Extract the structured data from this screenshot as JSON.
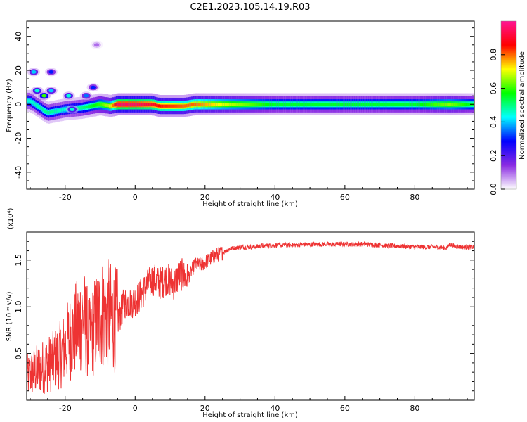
{
  "title": "C2E1.2023.105.14.19.R03",
  "chart_data": [
    {
      "type": "heatmap",
      "xlabel": "Height of straight line (km)",
      "ylabel": "Frequency (Hz)",
      "xlim": [
        -31,
        97
      ],
      "ylim": [
        -50,
        49
      ],
      "xticks": [
        -20,
        0,
        20,
        40,
        60,
        80
      ],
      "yticks": [
        -40,
        -20,
        0,
        20,
        40
      ],
      "colorbar": {
        "label": "Normalized spectral amplitude",
        "range": [
          0,
          1
        ],
        "ticks": [
          0.0,
          0.2,
          0.4,
          0.6,
          0.8
        ],
        "colors": [
          "#ffffff",
          "#8a2be2",
          "#0000ff",
          "#00ffff",
          "#00ff00",
          "#ffff00",
          "#ff0000",
          "#ff1493"
        ]
      },
      "band": [
        {
          "x": -30,
          "center": 2,
          "amp": 0.45
        },
        {
          "x": -25,
          "center": -5,
          "amp": 0.5
        },
        {
          "x": -20,
          "center": -3,
          "amp": 0.45
        },
        {
          "x": -15,
          "center": -2,
          "amp": 0.5
        },
        {
          "x": -10,
          "center": 0,
          "amp": 0.6
        },
        {
          "x": -7,
          "center": -1,
          "amp": 0.7
        },
        {
          "x": -5,
          "center": 0,
          "amp": 0.95
        },
        {
          "x": 0,
          "center": 0,
          "amp": 0.95
        },
        {
          "x": 5,
          "center": 0,
          "amp": 0.9
        },
        {
          "x": 7,
          "center": -1,
          "amp": 0.85
        },
        {
          "x": 14,
          "center": -1,
          "amp": 0.8
        },
        {
          "x": 17,
          "center": 0,
          "amp": 0.8
        },
        {
          "x": 25,
          "center": 0,
          "amp": 0.7
        },
        {
          "x": 40,
          "center": 0,
          "amp": 0.55
        },
        {
          "x": 60,
          "center": 0,
          "amp": 0.55
        },
        {
          "x": 80,
          "center": 0,
          "amp": 0.55
        },
        {
          "x": 90,
          "center": 0,
          "amp": 0.65
        },
        {
          "x": 96,
          "center": 0,
          "amp": 0.55
        }
      ],
      "blobs": [
        {
          "x": -29,
          "y": 19,
          "amp": 0.4
        },
        {
          "x": -28,
          "y": 8,
          "amp": 0.45
        },
        {
          "x": -26,
          "y": 5,
          "amp": 0.6
        },
        {
          "x": -24,
          "y": 8,
          "amp": 0.4
        },
        {
          "x": -24,
          "y": 19,
          "amp": 0.3
        },
        {
          "x": -19,
          "y": 5,
          "amp": 0.45
        },
        {
          "x": -18,
          "y": -3,
          "amp": 0.45
        },
        {
          "x": -14,
          "y": 5,
          "amp": 0.35
        },
        {
          "x": -12,
          "y": 10,
          "amp": 0.3
        },
        {
          "x": -11,
          "y": 35,
          "amp": 0.1
        }
      ]
    },
    {
      "type": "line",
      "xlabel": "Height of straight line (km)",
      "ylabel": "SNR (10 * v/v)",
      "y_multiplier": "(x10⁴)",
      "xlim": [
        -31,
        97
      ],
      "ylim": [
        0,
        1.8
      ],
      "xticks": [
        -20,
        0,
        20,
        40,
        60,
        80
      ],
      "yticks": [
        0.5,
        1.0,
        1.5
      ],
      "color": "#ee3333",
      "series": [
        {
          "x": [
            -31,
            -27,
            -24,
            -21,
            -19,
            -17,
            -15,
            -13,
            -11,
            -9,
            -7,
            -5,
            -3,
            -1,
            1,
            3,
            5,
            7,
            9,
            11,
            13,
            15,
            17,
            19,
            21,
            23,
            25,
            27,
            30,
            33,
            36,
            40,
            45,
            50,
            55,
            60,
            65,
            70,
            75,
            80,
            85,
            89,
            90,
            91,
            93,
            95,
            97
          ],
          "y": [
            0.25,
            0.35,
            0.4,
            0.5,
            0.65,
            0.75,
            0.9,
            0.65,
            0.85,
            0.95,
            0.9,
            0.85,
            1.05,
            1.05,
            1.1,
            1.2,
            1.3,
            1.25,
            1.3,
            1.25,
            1.35,
            1.3,
            1.45,
            1.45,
            1.5,
            1.55,
            1.58,
            1.62,
            1.64,
            1.64,
            1.65,
            1.66,
            1.66,
            1.67,
            1.67,
            1.67,
            1.67,
            1.66,
            1.65,
            1.64,
            1.64,
            1.63,
            1.67,
            1.65,
            1.64,
            1.64,
            1.64
          ]
        }
      ]
    }
  ]
}
